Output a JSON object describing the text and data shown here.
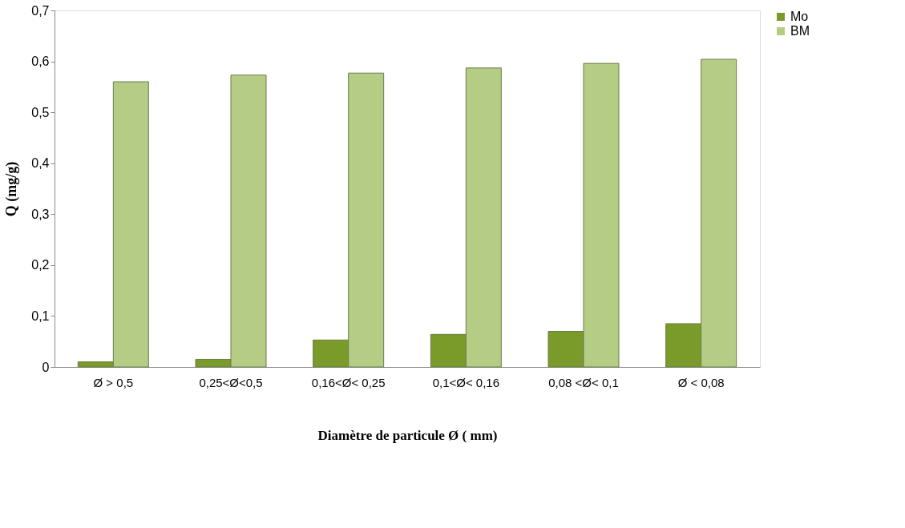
{
  "chart_data": {
    "type": "bar",
    "xlabel": "Diamètre de particule Ø ( mm)",
    "ylabel": "Q (mg/g)",
    "categories": [
      "Ø > 0,5",
      "0,25<Ø<0,5",
      "0,16<Ø< 0,25",
      "0,1<Ø< 0,16",
      "0,08 <Ø< 0,1",
      "Ø < 0,08"
    ],
    "series": [
      {
        "name": "Mo",
        "color": "#7a9a2a",
        "values": [
          0.01,
          0.015,
          0.053,
          0.064,
          0.07,
          0.085
        ]
      },
      {
        "name": "BM",
        "color": "#b5cc85",
        "values": [
          0.56,
          0.573,
          0.577,
          0.587,
          0.596,
          0.604
        ]
      }
    ],
    "ylim": [
      0,
      0.7
    ],
    "yticks": [
      {
        "value": 0,
        "label": "0"
      },
      {
        "value": 0.1,
        "label": "0,1"
      },
      {
        "value": 0.2,
        "label": "0,2"
      },
      {
        "value": 0.3,
        "label": "0,3"
      },
      {
        "value": 0.4,
        "label": "0,4"
      },
      {
        "value": 0.5,
        "label": "0,5"
      },
      {
        "value": 0.6,
        "label": "0,6"
      },
      {
        "value": 0.7,
        "label": "0,7"
      }
    ],
    "grid": false,
    "legend": "right"
  }
}
